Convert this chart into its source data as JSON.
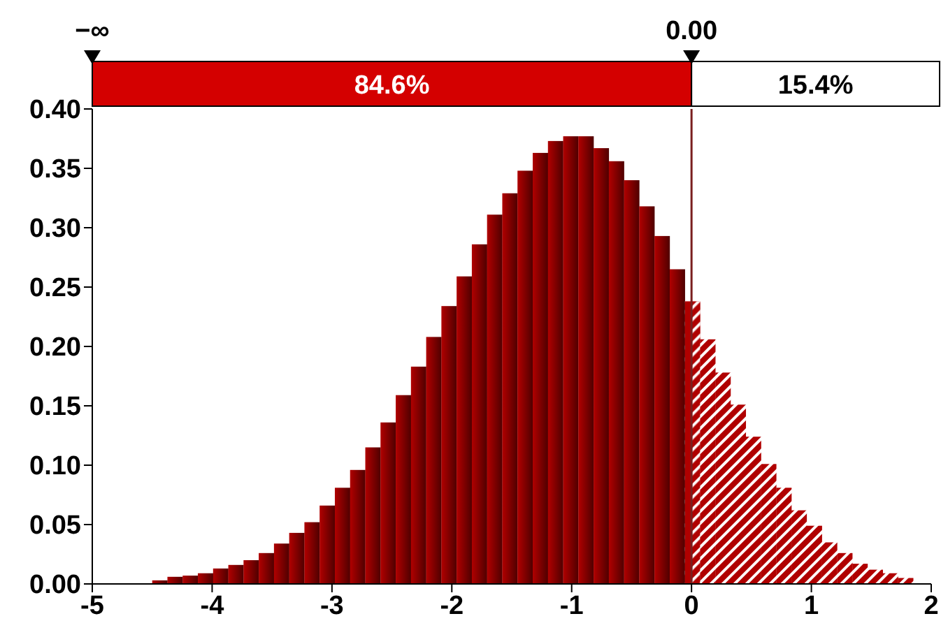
{
  "chart_data": {
    "type": "histogram",
    "color": "#b00000",
    "bins": [
      -4.5,
      -4.373,
      -4.246,
      -4.119,
      -3.992,
      -3.865,
      -3.738,
      -3.611,
      -3.484,
      -3.357,
      -3.23,
      -3.103,
      -2.976,
      -2.849,
      -2.722,
      -2.595,
      -2.468,
      -2.341,
      -2.214,
      -2.087,
      -1.96,
      -1.833,
      -1.706,
      -1.579,
      -1.452,
      -1.325,
      -1.198,
      -1.071,
      -0.944,
      -0.817,
      -0.69,
      -0.563,
      -0.436,
      -0.309,
      -0.182,
      -0.055,
      0.072,
      0.199,
      0.326,
      0.453,
      0.58,
      0.707,
      0.834,
      0.961,
      1.088,
      1.215,
      1.342,
      1.469,
      1.596,
      1.723,
      1.85
    ],
    "values": [
      0.003,
      0.006,
      0.007,
      0.009,
      0.013,
      0.016,
      0.02,
      0.026,
      0.034,
      0.043,
      0.052,
      0.066,
      0.081,
      0.096,
      0.115,
      0.136,
      0.159,
      0.183,
      0.208,
      0.234,
      0.259,
      0.286,
      0.311,
      0.329,
      0.348,
      0.363,
      0.373,
      0.377,
      0.377,
      0.367,
      0.356,
      0.34,
      0.318,
      0.293,
      0.265,
      0.238,
      0.206,
      0.178,
      0.151,
      0.124,
      0.101,
      0.081,
      0.062,
      0.049,
      0.035,
      0.026,
      0.017,
      0.012,
      0.009,
      0.005
    ],
    "xlim": [
      -5,
      2
    ],
    "xticks": [
      -5,
      -4,
      -3,
      -2,
      -1,
      0,
      1,
      2
    ],
    "ylim": [
      0,
      0.4
    ],
    "yticks": [
      {
        "value": 0,
        "label": "0.00"
      },
      {
        "value": 0.05,
        "label": "0.05"
      },
      {
        "value": 0.1,
        "label": "0.10"
      },
      {
        "value": 0.15,
        "label": "0.15"
      },
      {
        "value": 0.2,
        "label": "0.20"
      },
      {
        "value": 0.25,
        "label": "0.25"
      },
      {
        "value": 0.3,
        "label": "0.30"
      },
      {
        "value": 0.35,
        "label": "0.35"
      },
      {
        "value": 0.4,
        "label": "0.40"
      }
    ],
    "ref_lines": [
      {
        "axis": "x",
        "value": 0,
        "label": "0.00",
        "color": "#7a1f1f"
      }
    ],
    "annotations": [
      "−∞",
      "84.6%",
      "15.4%"
    ],
    "grid": false,
    "legend": false
  }
}
